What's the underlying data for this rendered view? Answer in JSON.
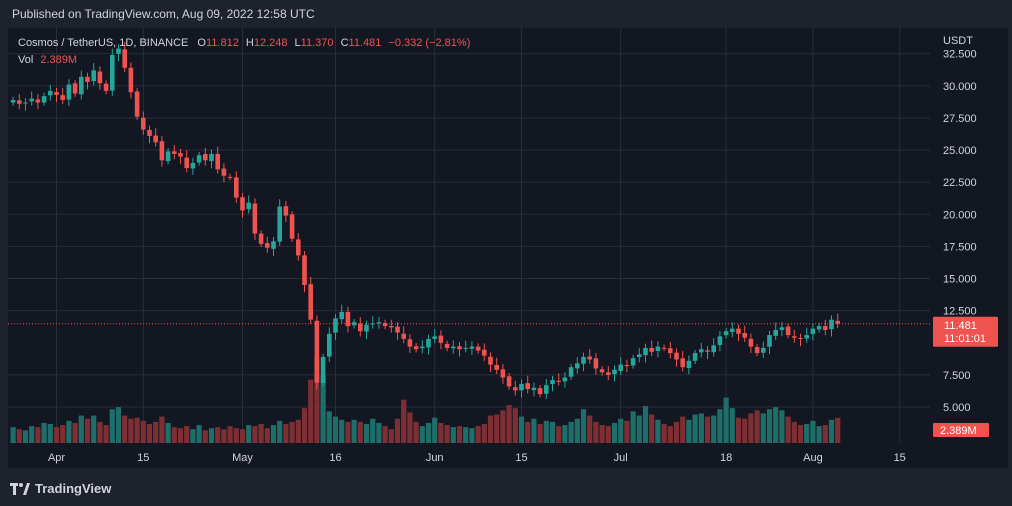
{
  "header": {
    "published": "Published on TradingView.com, Aug 09, 2022 12:58 UTC"
  },
  "legend": {
    "symbol": "Cosmos / TetherUS, 1D, BINANCE",
    "o_label": "O",
    "o_value": "11.812",
    "h_label": "H",
    "h_value": "12.248",
    "l_label": "L",
    "l_value": "11.370",
    "c_label": "C",
    "c_value": "11.481",
    "change": "−0.332 (−2.81%)",
    "vol_label": "Vol",
    "vol_value": "2.389M"
  },
  "axis": {
    "currency": "USDT",
    "price_tag": "11.481",
    "countdown": "11:01:01",
    "volume_tag": "2.389M"
  },
  "footer": {
    "brand": "TradingView"
  },
  "colors": {
    "up": "#26a69a",
    "down": "#ef5350",
    "up_vol": "#1f6e69",
    "down_vol": "#7d2f33",
    "background": "#131722",
    "grid": "#2a2e39",
    "text": "#d1d4dc"
  },
  "chart_data": {
    "type": "candlestick",
    "title": "Cosmos / TetherUS, 1D, BINANCE",
    "start_date": "2022-03-25",
    "y_ticks": [
      "32.500",
      "30.000",
      "27.500",
      "25.000",
      "22.500",
      "20.000",
      "17.500",
      "15.000",
      "12.500",
      "7.500",
      "5.000"
    ],
    "y_tick_values": [
      32.5,
      30,
      27.5,
      25,
      22.5,
      20,
      17.5,
      15,
      12.5,
      7.5,
      5
    ],
    "x_ticks": [
      {
        "label": "Apr",
        "day": 7
      },
      {
        "label": "15",
        "day": 21
      },
      {
        "label": "May",
        "day": 37
      },
      {
        "label": "16",
        "day": 52
      },
      {
        "label": "Jun",
        "day": 68
      },
      {
        "label": "15",
        "day": 82
      },
      {
        "label": "Jul",
        "day": 98
      },
      {
        "label": "18",
        "day": 115
      },
      {
        "label": "Aug",
        "day": 129
      },
      {
        "label": "15",
        "day": 143
      }
    ],
    "ylim": [
      2.2,
      34.5
    ],
    "last_price": 11.481,
    "closes": [
      28.9,
      28.6,
      28.7,
      29.0,
      28.7,
      29.2,
      29.6,
      29.3,
      28.9,
      30.1,
      29.4,
      30.7,
      30.3,
      31.2,
      30.2,
      29.6,
      32.4,
      32.9,
      31.4,
      29.5,
      27.6,
      26.6,
      26.1,
      25.6,
      24.2,
      24.9,
      24.7,
      24.5,
      23.6,
      24.0,
      24.6,
      24.2,
      24.7,
      23.5,
      23.0,
      22.9,
      21.3,
      20.3,
      20.9,
      18.5,
      17.7,
      17.4,
      17.9,
      20.6,
      19.9,
      18.1,
      16.8,
      14.5,
      11.8,
      6.9,
      8.9,
      10.7,
      11.9,
      12.4,
      11.3,
      11.6,
      10.9,
      11.4,
      11.5,
      11.6,
      11.3,
      11.2,
      10.8,
      10.3,
      9.7,
      9.5,
      9.7,
      10.3,
      10.5,
      10.0,
      9.6,
      9.7,
      9.5,
      9.6,
      9.7,
      9.4,
      9.0,
      8.3,
      7.9,
      7.3,
      6.6,
      6.3,
      6.8,
      6.4,
      6.5,
      6.0,
      6.7,
      7.1,
      7.0,
      7.3,
      8.1,
      8.4,
      8.9,
      8.7,
      8.0,
      7.7,
      7.5,
      7.9,
      8.3,
      8.2,
      8.8,
      9.1,
      9.6,
      9.3,
      9.7,
      9.6,
      9.2,
      8.7,
      8.1,
      8.6,
      9.2,
      9.5,
      9.3,
      9.8,
      10.5,
      10.9,
      11.1,
      10.7,
      10.4,
      9.7,
      9.2,
      9.6,
      10.6,
      11.0,
      11.2,
      10.6,
      10.4,
      10.3,
      10.6,
      11.1,
      11.3,
      11.0,
      11.8,
      11.481
    ],
    "volumes": [
      1.5,
      1.3,
      1.2,
      1.6,
      1.5,
      1.9,
      1.8,
      1.5,
      1.7,
      2.1,
      1.9,
      2.6,
      2.3,
      2.6,
      2.0,
      1.7,
      3.2,
      3.4,
      2.6,
      2.3,
      2.4,
      2.1,
      1.8,
      2.0,
      2.5,
      1.9,
      1.5,
      1.4,
      1.6,
      1.3,
      1.7,
      1.2,
      1.4,
      1.5,
      1.3,
      1.6,
      1.4,
      1.3,
      1.7,
      1.6,
      1.8,
      1.4,
      1.7,
      2.1,
      1.8,
      2.0,
      2.2,
      3.3,
      6.0,
      8.0,
      6.3,
      3.0,
      2.5,
      2.2,
      2.0,
      2.2,
      2.0,
      1.8,
      2.3,
      1.9,
      1.6,
      1.3,
      2.3,
      4.1,
      2.9,
      2.0,
      1.6,
      1.9,
      2.4,
      1.9,
      1.7,
      1.5,
      1.6,
      1.5,
      1.4,
      1.6,
      1.8,
      2.6,
      2.7,
      3.1,
      3.6,
      3.3,
      2.5,
      2.0,
      2.3,
      1.8,
      2.1,
      2.0,
      1.6,
      1.7,
      2.0,
      2.3,
      3.2,
      2.6,
      2.0,
      1.7,
      1.6,
      1.9,
      2.3,
      2.1,
      3.0,
      2.6,
      3.5,
      2.7,
      2.2,
      1.8,
      1.6,
      2.0,
      2.5,
      2.2,
      2.7,
      2.8,
      2.5,
      2.6,
      3.2,
      4.3,
      3.3,
      2.4,
      2.3,
      2.8,
      3.1,
      2.8,
      3.2,
      3.4,
      3.1,
      2.5,
      2.0,
      1.7,
      1.8,
      2.1,
      1.6,
      1.7,
      2.2,
      2.389
    ],
    "volume_max": 9
  }
}
